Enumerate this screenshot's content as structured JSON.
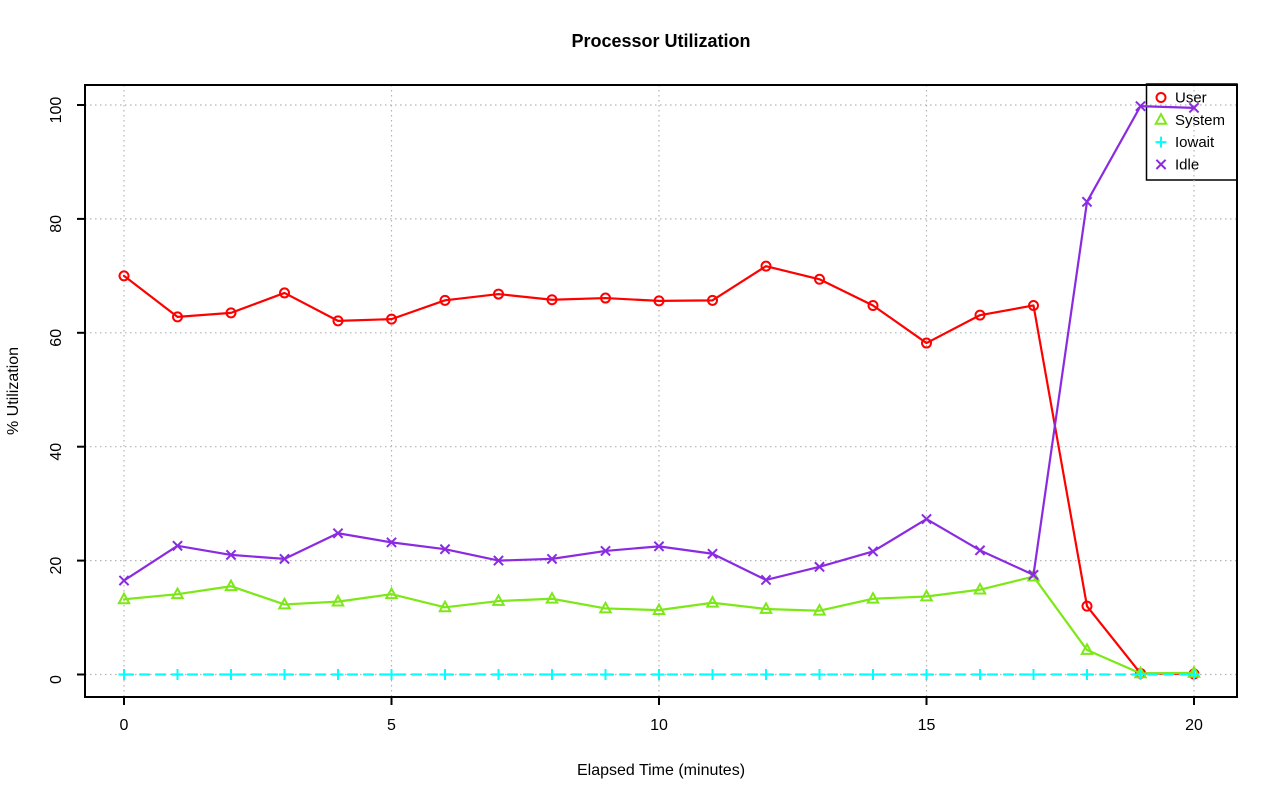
{
  "chart_data": {
    "type": "line",
    "title": "Processor Utilization",
    "xlabel": "Elapsed Time (minutes)",
    "ylabel": "% Utilization",
    "xlim": [
      0,
      20
    ],
    "ylim": [
      0,
      100
    ],
    "xticks": [
      "0",
      "5",
      "10",
      "15",
      "20"
    ],
    "xtick_values": [
      0,
      5,
      10,
      15,
      20
    ],
    "yticks": [
      "0",
      "20",
      "40",
      "60",
      "80",
      "100"
    ],
    "ytick_values": [
      0,
      20,
      40,
      60,
      80,
      100
    ],
    "grid": "dotted",
    "legend_position": "top-right",
    "x": [
      0,
      1,
      2,
      3,
      4,
      5,
      6,
      7,
      8,
      9,
      10,
      11,
      12,
      13,
      14,
      15,
      16,
      17,
      18,
      19,
      20
    ],
    "series": [
      {
        "name": "User",
        "color": "#FF0000",
        "marker": "circle",
        "line": "solid",
        "values": [
          70,
          62.8,
          63.5,
          67,
          62.1,
          62.4,
          65.7,
          66.8,
          65.8,
          66.1,
          65.6,
          65.7,
          71.7,
          69.4,
          64.8,
          58.2,
          63.1,
          64.8,
          12,
          0.2,
          0.1
        ]
      },
      {
        "name": "System",
        "color": "#7CE817",
        "marker": "triangle",
        "line": "solid",
        "values": [
          13.2,
          14.1,
          15.5,
          12.3,
          12.8,
          14.1,
          11.8,
          12.9,
          13.3,
          11.6,
          11.3,
          12.6,
          11.5,
          11.2,
          13.3,
          13.7,
          14.9,
          17.2,
          4.3,
          0.2,
          0.3
        ]
      },
      {
        "name": "Iowait",
        "color": "#00FFFF",
        "marker": "plus",
        "line": "dashed",
        "values": [
          0,
          0,
          0,
          0,
          0,
          0,
          0,
          0,
          0,
          0,
          0,
          0,
          0,
          0,
          0,
          0,
          0,
          0,
          0,
          0,
          0
        ]
      },
      {
        "name": "Idle",
        "color": "#8A2BE2",
        "marker": "x",
        "line": "solid",
        "values": [
          16.5,
          22.6,
          21,
          20.3,
          24.8,
          23.2,
          22,
          20,
          20.3,
          21.7,
          22.5,
          21.2,
          16.6,
          18.9,
          21.6,
          27.3,
          21.8,
          17.5,
          83,
          99.8,
          99.5
        ]
      }
    ]
  }
}
